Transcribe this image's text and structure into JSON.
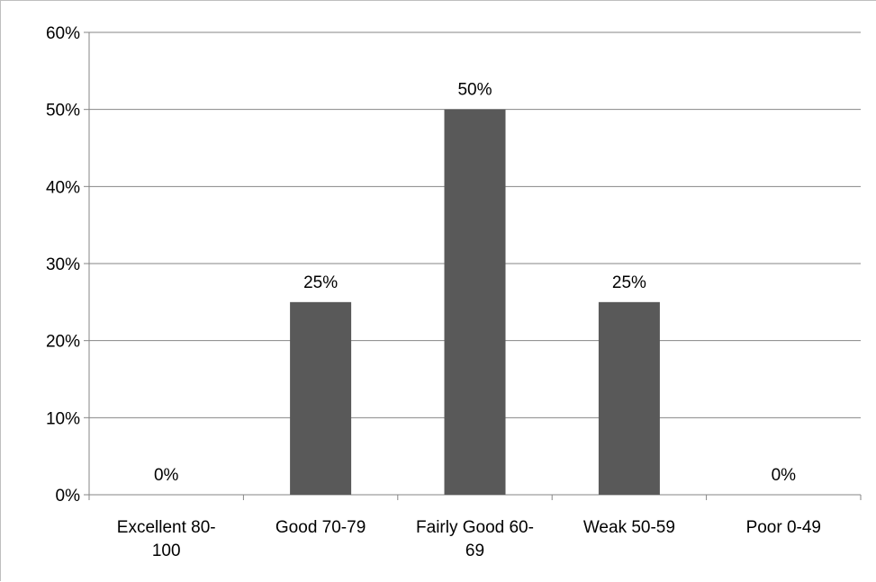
{
  "chart_data": {
    "type": "bar",
    "categories": [
      [
        "Excellent 80-",
        "100"
      ],
      [
        "Good 70-79"
      ],
      [
        "Fairly Good 60-",
        "69"
      ],
      [
        "Weak 50-59"
      ],
      [
        "Poor 0-49"
      ]
    ],
    "values": [
      0,
      25,
      50,
      25,
      0
    ],
    "data_labels": [
      "0%",
      "25%",
      "50%",
      "25%",
      "0%"
    ],
    "ylim": [
      0,
      60
    ],
    "yticks": [
      0,
      10,
      20,
      30,
      40,
      50,
      60
    ],
    "ytick_labels": [
      "0%",
      "10%",
      "20%",
      "30%",
      "40%",
      "50%",
      "60%"
    ],
    "grid": true,
    "legend": "none",
    "title": "",
    "xlabel": "",
    "ylabel": "",
    "bar_color": "#595959",
    "grid_color": "#868686"
  }
}
